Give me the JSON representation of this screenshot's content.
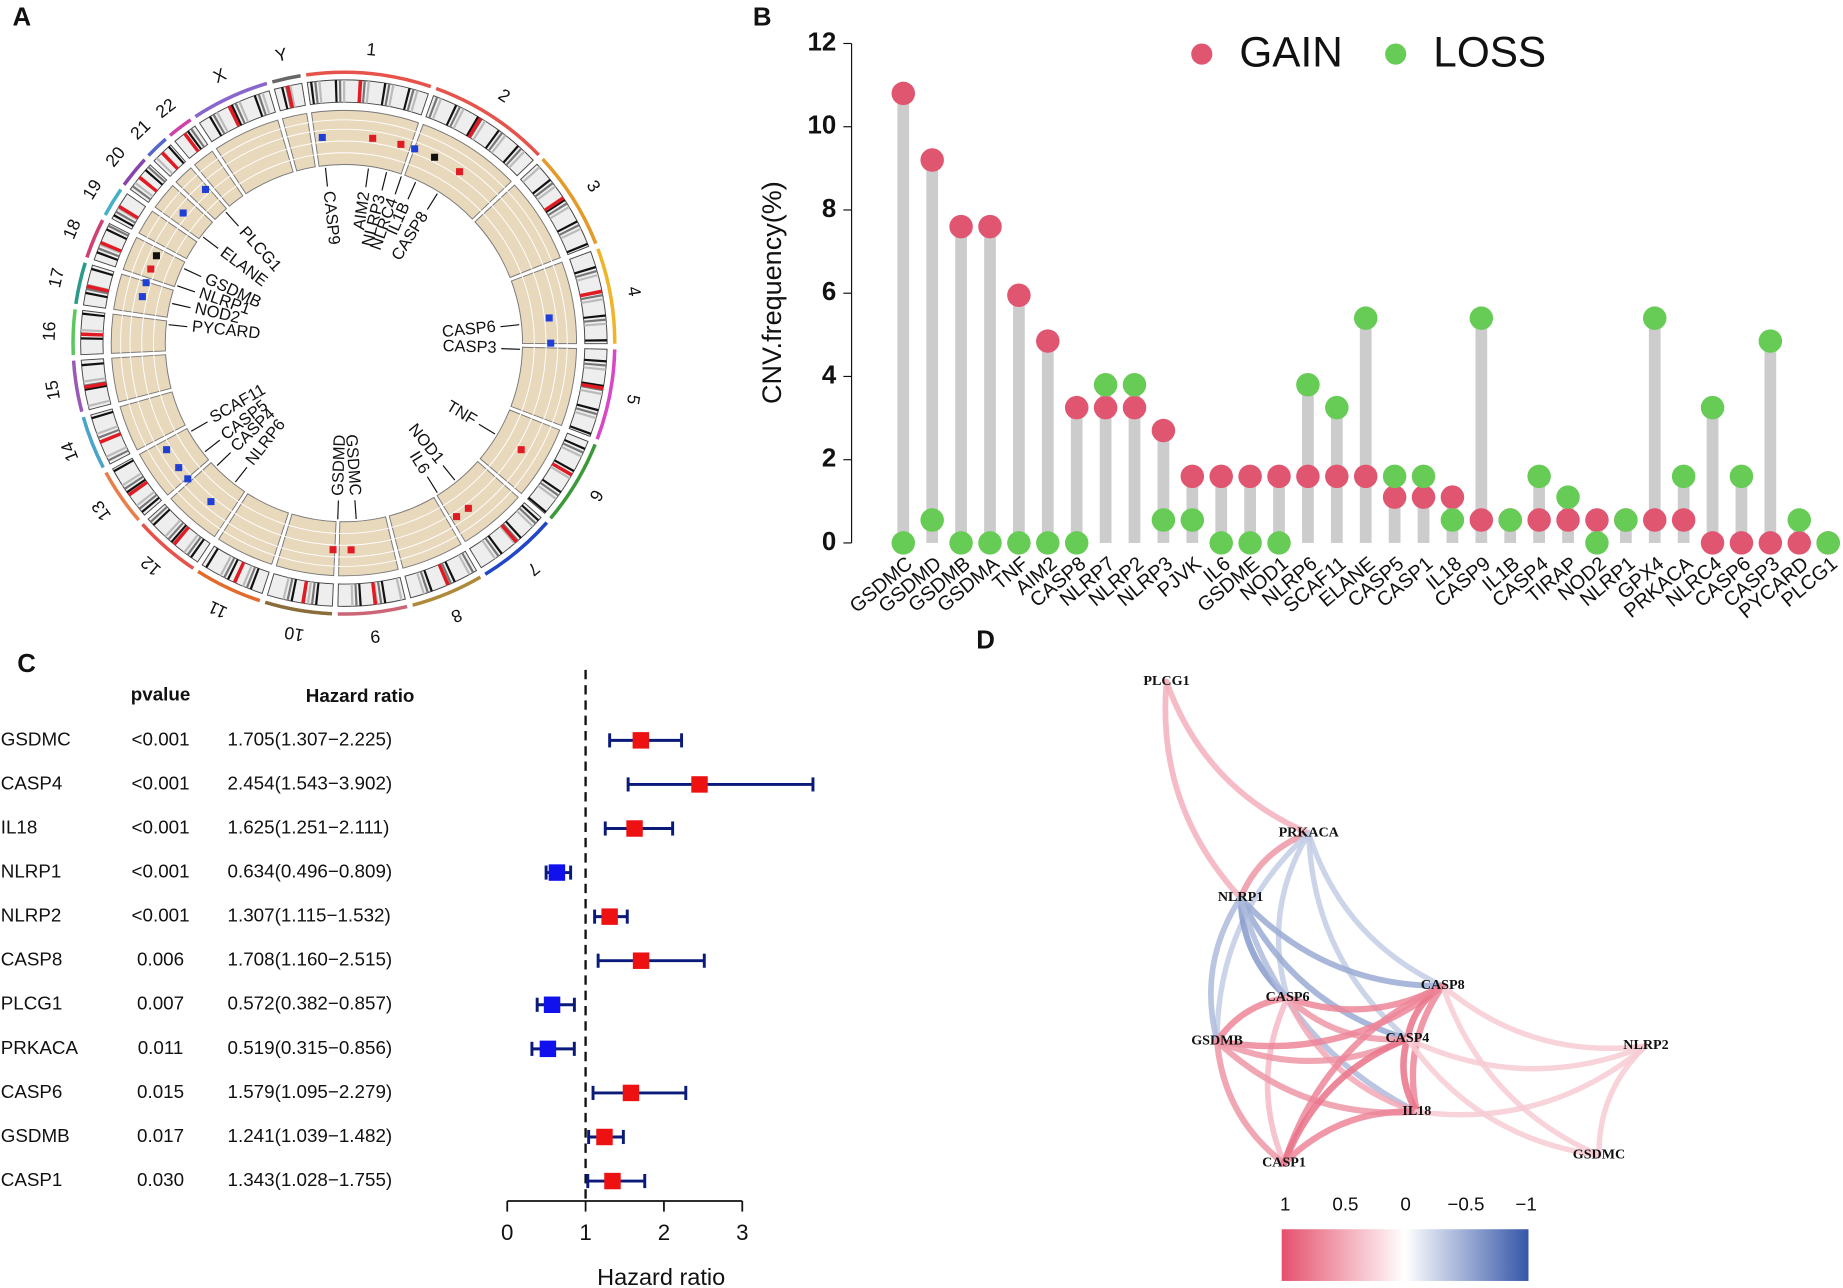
{
  "chart_data": [
    {
      "type": "circos",
      "panel": "A",
      "chromosomes": [
        "1",
        "2",
        "3",
        "4",
        "5",
        "6",
        "7",
        "8",
        "9",
        "10",
        "11",
        "12",
        "13",
        "14",
        "15",
        "16",
        "17",
        "18",
        "19",
        "20",
        "21",
        "22",
        "X",
        "Y"
      ],
      "genes": [
        {
          "name": "CASP9",
          "color": "#1f3fd6"
        },
        {
          "name": "AIM2",
          "color": "#e01b24"
        },
        {
          "name": "NLRP3",
          "color": "#e01b24"
        },
        {
          "name": "NLRC4",
          "color": "#1f3fd6"
        },
        {
          "name": "IL1B",
          "color": "#111111"
        },
        {
          "name": "CASP8",
          "color": "#e01b24"
        },
        {
          "name": "CASP6",
          "color": "#1f3fd6"
        },
        {
          "name": "CASP3",
          "color": "#1f3fd6"
        },
        {
          "name": "TNF",
          "color": "#e01b24"
        },
        {
          "name": "NOD1",
          "color": "#e01b24"
        },
        {
          "name": "IL6",
          "color": "#e01b24"
        },
        {
          "name": "GSDMC",
          "color": "#e01b24"
        },
        {
          "name": "GSDMD",
          "color": "#e01b24"
        },
        {
          "name": "NLRP6",
          "color": "#1f3fd6"
        },
        {
          "name": "CASP4",
          "color": "#1f3fd6"
        },
        {
          "name": "CASP5",
          "color": "#1f3fd6"
        },
        {
          "name": "SCAF11",
          "color": "#1f3fd6"
        },
        {
          "name": "PYCARD",
          "color": "#1f3fd6"
        },
        {
          "name": "NOD2",
          "color": "#1f3fd6"
        },
        {
          "name": "NLRP1",
          "color": "#e01b24"
        },
        {
          "name": "GSDMB",
          "color": "#111111"
        },
        {
          "name": "ELANE",
          "color": "#1f3fd6"
        },
        {
          "name": "PLCG1",
          "color": "#1f3fd6"
        }
      ]
    },
    {
      "type": "lollipop",
      "panel": "B",
      "ylabel": "CNV.frequency(%)",
      "categories": [
        "GSDMC",
        "GSDMD",
        "GSDMB",
        "GSDMA",
        "TNF",
        "AIM2",
        "CASP8",
        "NLRP7",
        "NLRP2",
        "NLRP3",
        "PJVK",
        "IL6",
        "GSDME",
        "NOD1",
        "NLRP6",
        "SCAF11",
        "ELANE",
        "CASP5",
        "CASP1",
        "IL18",
        "CASP9",
        "IL1B",
        "CASP4",
        "TIRAP",
        "NOD2",
        "NLRP1",
        "GPX4",
        "PRKACA",
        "NLRC4",
        "CASP6",
        "CASP3",
        "PYCARD",
        "PLCG1"
      ],
      "series": [
        {
          "name": "GAIN",
          "color": "#e05570",
          "values": [
            10.8,
            9.2,
            7.6,
            7.6,
            5.95,
            4.85,
            3.25,
            3.25,
            3.25,
            2.7,
            1.6,
            1.6,
            1.6,
            1.6,
            1.6,
            1.6,
            1.6,
            1.1,
            1.1,
            1.1,
            0.55,
            0.55,
            0.55,
            0.55,
            0.55,
            0.55,
            0.55,
            0.55,
            0,
            0,
            0,
            0,
            0
          ]
        },
        {
          "name": "LOSS",
          "color": "#66cc55",
          "values": [
            0,
            0.55,
            0,
            0,
            0,
            0,
            0,
            3.8,
            3.8,
            0.55,
            0.55,
            0,
            0,
            0,
            3.8,
            3.25,
            5.4,
            1.6,
            1.6,
            0.55,
            5.4,
            0.55,
            1.6,
            1.1,
            0,
            0.55,
            5.4,
            1.6,
            3.25,
            1.6,
            4.85,
            0.55,
            0
          ]
        }
      ],
      "stem_color": "#cccccc",
      "ylim": [
        0,
        12
      ],
      "yticks": [
        0,
        2,
        4,
        6,
        8,
        10,
        12
      ],
      "legend": "top"
    },
    {
      "type": "forest",
      "panel": "C",
      "pvalue_header": "pvalue",
      "hr_header": "Hazard ratio",
      "xlabel": "Hazard ratio",
      "genes": [
        "GSDMC",
        "CASP4",
        "IL18",
        "NLRP1",
        "NLRP2",
        "CASP8",
        "PLCG1",
        "PRKACA",
        "CASP6",
        "GSDMB",
        "CASP1"
      ],
      "pvalues": [
        "<0.001",
        "<0.001",
        "<0.001",
        "<0.001",
        "<0.001",
        "0.006",
        "0.007",
        "0.011",
        "0.015",
        "0.017",
        "0.030"
      ],
      "hr_labels": [
        "1.705(1.307−2.225)",
        "2.454(1.543−3.902)",
        "1.625(1.251−2.111)",
        "0.634(0.496−0.809)",
        "1.307(1.115−1.532)",
        "1.708(1.160−2.515)",
        "0.572(0.382−0.857)",
        "0.519(0.315−0.856)",
        "1.579(1.095−2.279)",
        "1.241(1.039−1.482)",
        "1.343(1.028−1.755)"
      ],
      "hr": [
        1.705,
        2.454,
        1.625,
        0.634,
        1.307,
        1.708,
        0.572,
        0.519,
        1.579,
        1.241,
        1.343
      ],
      "lower": [
        1.307,
        1.543,
        1.251,
        0.496,
        1.115,
        1.16,
        0.382,
        0.315,
        1.095,
        1.039,
        1.028
      ],
      "upper": [
        2.225,
        3.902,
        2.111,
        0.809,
        1.532,
        2.515,
        0.857,
        0.856,
        2.279,
        1.482,
        1.755
      ],
      "reference": 1,
      "risk_color": "#ee1111",
      "protective_color": "#1111ee",
      "ci_color": "#0a1a7a",
      "xlim": [
        0,
        3
      ],
      "xticks": [
        0,
        1,
        2,
        3
      ]
    },
    {
      "type": "network",
      "panel": "D",
      "nodes": [
        "PLCG1",
        "PRKACA",
        "NLRP1",
        "CASP6",
        "CASP8",
        "GSDMB",
        "CASP4",
        "IL18",
        "CASP1",
        "NLRP2",
        "GSDMC"
      ],
      "edges": [
        {
          "source": "PLCG1",
          "target": "PRKACA",
          "value": 0.45
        },
        {
          "source": "PLCG1",
          "target": "NLRP1",
          "value": 0.45
        },
        {
          "source": "PRKACA",
          "target": "NLRP1",
          "value": 0.6
        },
        {
          "source": "PRKACA",
          "target": "CASP6",
          "value": -0.3
        },
        {
          "source": "PRKACA",
          "target": "CASP8",
          "value": -0.3
        },
        {
          "source": "PRKACA",
          "target": "GSDMB",
          "value": -0.3
        },
        {
          "source": "PRKACA",
          "target": "CASP4",
          "value": -0.3
        },
        {
          "source": "NLRP1",
          "target": "CASP6",
          "value": -0.6
        },
        {
          "source": "NLRP1",
          "target": "GSDMB",
          "value": -0.4
        },
        {
          "source": "NLRP1",
          "target": "CASP8",
          "value": -0.5
        },
        {
          "source": "NLRP1",
          "target": "CASP4",
          "value": -0.5
        },
        {
          "source": "NLRP1",
          "target": "IL18",
          "value": -0.4
        },
        {
          "source": "CASP6",
          "target": "CASP8",
          "value": 0.7
        },
        {
          "source": "CASP6",
          "target": "CASP4",
          "value": 0.6
        },
        {
          "source": "CASP6",
          "target": "GSDMB",
          "value": 0.7
        },
        {
          "source": "CASP6",
          "target": "IL18",
          "value": 0.5
        },
        {
          "source": "CASP6",
          "target": "CASP1",
          "value": 0.4
        },
        {
          "source": "GSDMB",
          "target": "CASP8",
          "value": 0.7
        },
        {
          "source": "GSDMB",
          "target": "CASP4",
          "value": 0.6
        },
        {
          "source": "GSDMB",
          "target": "IL18",
          "value": 0.6
        },
        {
          "source": "GSDMB",
          "target": "CASP1",
          "value": 0.6
        },
        {
          "source": "CASP8",
          "target": "CASP4",
          "value": 0.8
        },
        {
          "source": "CASP8",
          "target": "IL18",
          "value": 0.7
        },
        {
          "source": "CASP8",
          "target": "NLRP2",
          "value": 0.3
        },
        {
          "source": "CASP8",
          "target": "GSDMC",
          "value": 0.3
        },
        {
          "source": "CASP8",
          "target": "CASP1",
          "value": 0.7
        },
        {
          "source": "CASP4",
          "target": "IL18",
          "value": 0.8
        },
        {
          "source": "CASP4",
          "target": "CASP1",
          "value": 0.8
        },
        {
          "source": "CASP4",
          "target": "NLRP2",
          "value": 0.3
        },
        {
          "source": "CASP4",
          "target": "GSDMC",
          "value": 0.3
        },
        {
          "source": "IL18",
          "target": "CASP1",
          "value": 0.7
        },
        {
          "source": "IL18",
          "target": "NLRP2",
          "value": 0.3
        },
        {
          "source": "NLRP2",
          "target": "GSDMC",
          "value": 0.3
        }
      ],
      "positive_color": "#e5506d",
      "negative_color": "#3556a8",
      "colorbar_ticks": [
        1,
        0.5,
        0,
        {
          "value": -0.5,
          "label": "−0.5"
        },
        {
          "value": -1,
          "label": "−1"
        }
      ]
    }
  ]
}
